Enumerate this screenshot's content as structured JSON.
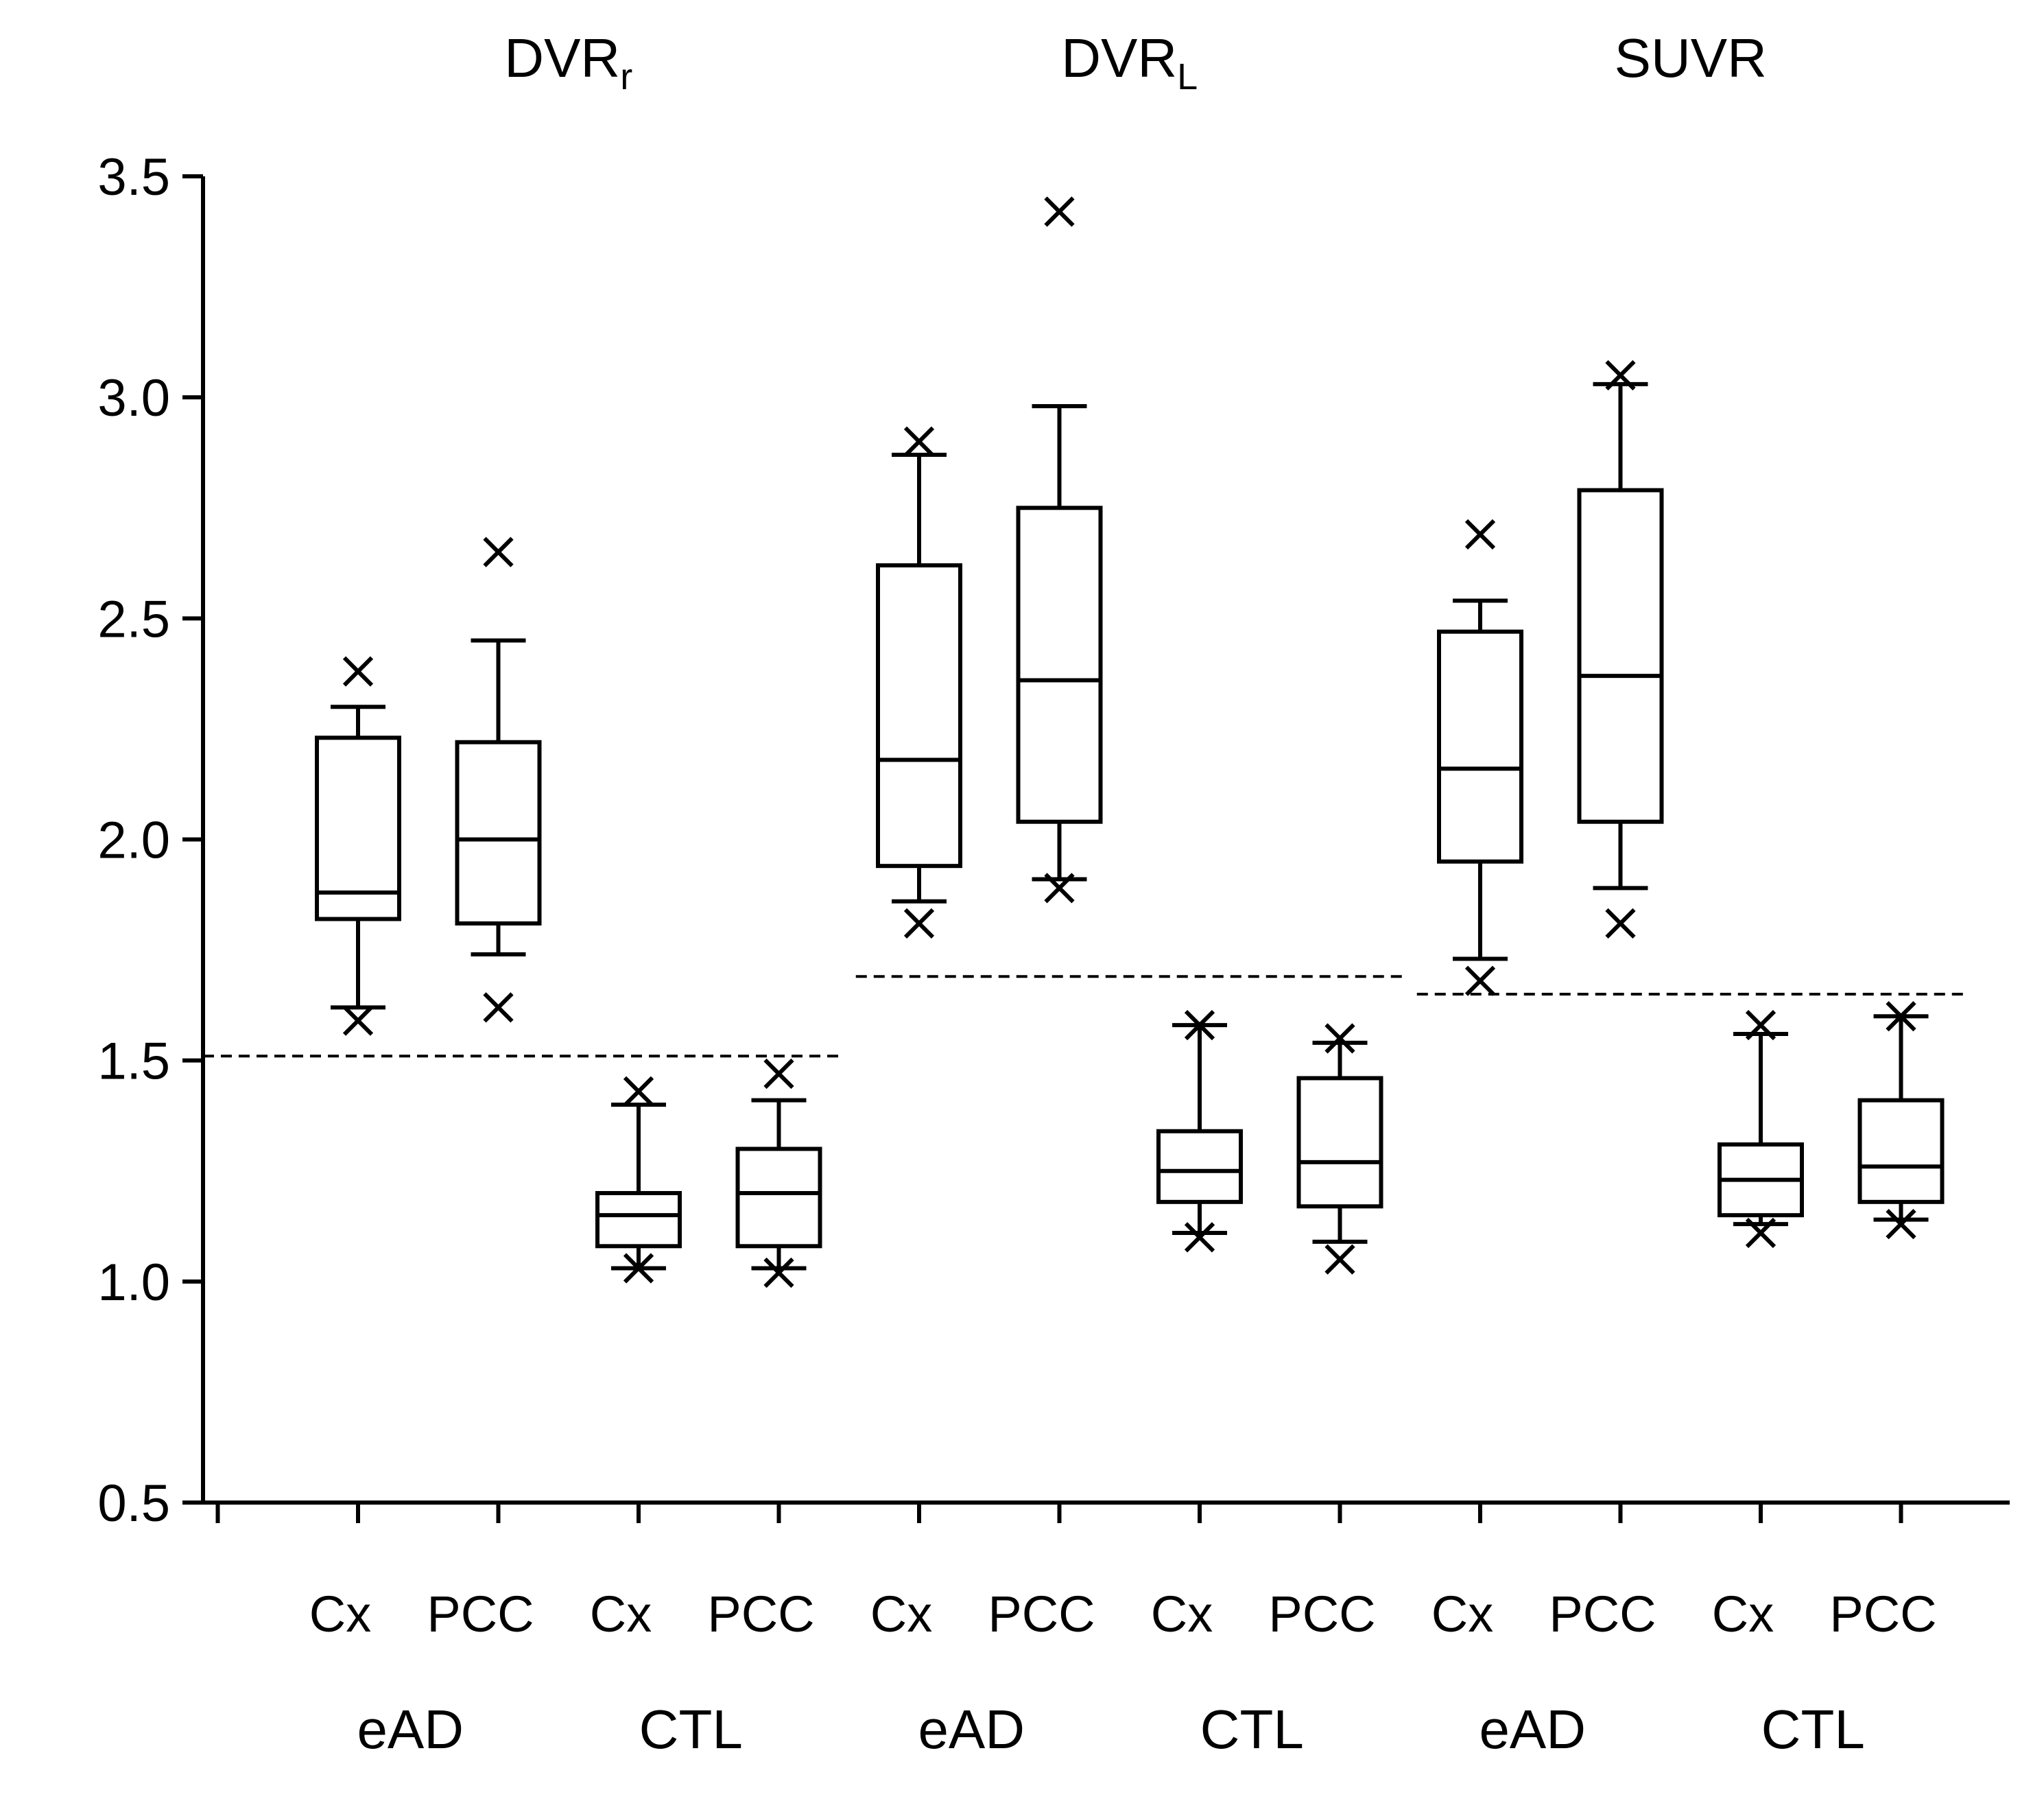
{
  "chart_data": {
    "type": "box",
    "ylim": [
      0.5,
      3.5
    ],
    "yticks": [
      "0.5",
      "1.0",
      "1.5",
      "2.0",
      "2.5",
      "3.0",
      "3.5"
    ],
    "grid": false,
    "panels": [
      {
        "title_main": "DVR",
        "title_sub": "r",
        "threshold": 1.51,
        "groups": [
          {
            "label": "eAD",
            "regions": [
              {
                "label": "Cx",
                "whisker_low": 1.62,
                "q1": 1.82,
                "median": 1.88,
                "q3": 2.23,
                "whisker_high": 2.3,
                "outliers_low": [
                  1.59
                ],
                "outliers_high": [
                  2.38
                ]
              },
              {
                "label": "PCC",
                "whisker_low": 1.74,
                "q1": 1.81,
                "median": 2.0,
                "q3": 2.22,
                "whisker_high": 2.45,
                "outliers_low": [
                  1.62
                ],
                "outliers_high": [
                  2.65
                ]
              }
            ]
          },
          {
            "label": "CTL",
            "regions": [
              {
                "label": "Cx",
                "whisker_low": 1.03,
                "q1": 1.08,
                "median": 1.15,
                "q3": 1.2,
                "whisker_high": 1.4,
                "outliers_low": [
                  1.03
                ],
                "outliers_high": [
                  1.43
                ]
              },
              {
                "label": "PCC",
                "whisker_low": 1.03,
                "q1": 1.08,
                "median": 1.2,
                "q3": 1.3,
                "whisker_high": 1.41,
                "outliers_low": [
                  1.02
                ],
                "outliers_high": [
                  1.47
                ]
              }
            ]
          }
        ]
      },
      {
        "title_main": "DVR",
        "title_sub": "L",
        "threshold": 1.69,
        "groups": [
          {
            "label": "eAD",
            "regions": [
              {
                "label": "Cx",
                "whisker_low": 1.86,
                "q1": 1.94,
                "median": 2.18,
                "q3": 2.62,
                "whisker_high": 2.87,
                "outliers_low": [
                  1.81
                ],
                "outliers_high": [
                  2.9
                ]
              },
              {
                "label": "PCC",
                "whisker_low": 1.91,
                "q1": 2.04,
                "median": 2.36,
                "q3": 2.75,
                "whisker_high": 2.98,
                "outliers_low": [
                  1.89
                ],
                "outliers_high": [
                  3.42
                ]
              }
            ]
          },
          {
            "label": "CTL",
            "regions": [
              {
                "label": "Cx",
                "whisker_low": 1.11,
                "q1": 1.18,
                "median": 1.25,
                "q3": 1.34,
                "whisker_high": 1.58,
                "outliers_low": [
                  1.1
                ],
                "outliers_high": [
                  1.58
                ]
              },
              {
                "label": "PCC",
                "whisker_low": 1.09,
                "q1": 1.17,
                "median": 1.27,
                "q3": 1.46,
                "whisker_high": 1.54,
                "outliers_low": [
                  1.05
                ],
                "outliers_high": [
                  1.55
                ]
              }
            ]
          }
        ]
      },
      {
        "title_main": "SUVR",
        "title_sub": "",
        "threshold": 1.65,
        "groups": [
          {
            "label": "eAD",
            "regions": [
              {
                "label": "Cx",
                "whisker_low": 1.73,
                "q1": 1.95,
                "median": 2.16,
                "q3": 2.47,
                "whisker_high": 2.54,
                "outliers_low": [
                  1.68
                ],
                "outliers_high": [
                  2.69
                ]
              },
              {
                "label": "PCC",
                "whisker_low": 1.89,
                "q1": 2.04,
                "median": 2.37,
                "q3": 2.79,
                "whisker_high": 3.03,
                "outliers_low": [
                  1.81
                ],
                "outliers_high": [
                  3.05
                ]
              }
            ]
          },
          {
            "label": "CTL",
            "regions": [
              {
                "label": "Cx",
                "whisker_low": 1.13,
                "q1": 1.15,
                "median": 1.23,
                "q3": 1.31,
                "whisker_high": 1.56,
                "outliers_low": [
                  1.11
                ],
                "outliers_high": [
                  1.58
                ]
              },
              {
                "label": "PCC",
                "whisker_low": 1.14,
                "q1": 1.18,
                "median": 1.26,
                "q3": 1.41,
                "whisker_high": 1.6,
                "outliers_low": [
                  1.13
                ],
                "outliers_high": [
                  1.6
                ]
              }
            ]
          }
        ]
      }
    ]
  }
}
